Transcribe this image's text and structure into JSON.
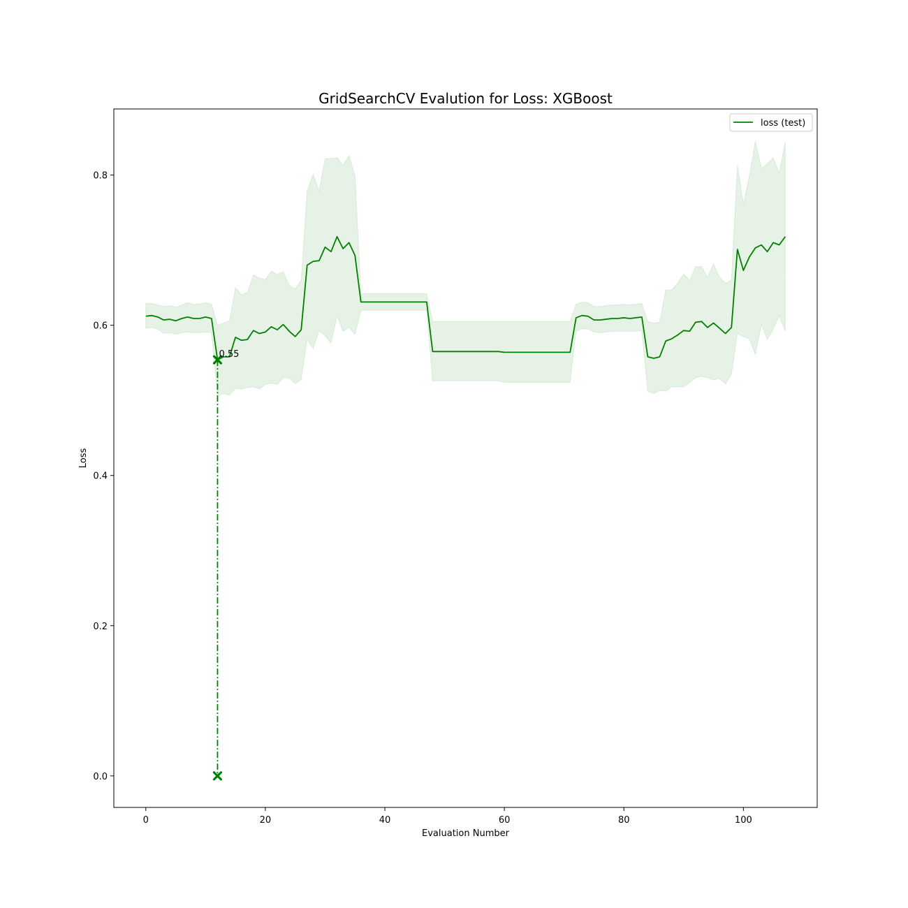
{
  "chart_data": {
    "type": "line",
    "title": "GridSearchCV Evalution for Loss: XGBoost",
    "xlabel": "Evaluation Number",
    "ylabel": "Loss",
    "xlim": [
      -5.35,
      112.35
    ],
    "ylim": [
      -0.042,
      0.888
    ],
    "xticks": [
      0,
      20,
      40,
      60,
      80,
      100
    ],
    "yticks": [
      0.0,
      0.2,
      0.4,
      0.6,
      0.8
    ],
    "ytick_labels": [
      "0.0",
      "0.2",
      "0.4",
      "0.6",
      "0.8"
    ],
    "grid": false,
    "legend": {
      "position": "top-right",
      "entries": [
        "loss (test)"
      ]
    },
    "colors": {
      "line": "#008000",
      "band": "#008000"
    },
    "series": [
      {
        "name": "loss (test)",
        "x": [
          0,
          1,
          2,
          3,
          4,
          5,
          6,
          7,
          8,
          9,
          10,
          11,
          12,
          13,
          14,
          15,
          16,
          17,
          18,
          19,
          20,
          21,
          22,
          23,
          24,
          25,
          26,
          27,
          28,
          29,
          30,
          31,
          32,
          33,
          34,
          35,
          36,
          37,
          38,
          39,
          40,
          41,
          42,
          43,
          44,
          45,
          46,
          47,
          48,
          49,
          50,
          51,
          52,
          53,
          54,
          55,
          56,
          57,
          58,
          59,
          60,
          61,
          62,
          63,
          64,
          65,
          66,
          67,
          68,
          69,
          70,
          71,
          72,
          73,
          74,
          75,
          76,
          77,
          78,
          79,
          80,
          81,
          82,
          83,
          84,
          85,
          86,
          87,
          88,
          89,
          90,
          91,
          92,
          93,
          94,
          95,
          96,
          97,
          98,
          99,
          100,
          101,
          102,
          103,
          104,
          105,
          106,
          107
        ],
        "y": [
          0.612,
          0.613,
          0.611,
          0.607,
          0.608,
          0.606,
          0.609,
          0.611,
          0.609,
          0.609,
          0.611,
          0.609,
          0.554,
          0.558,
          0.558,
          0.584,
          0.58,
          0.581,
          0.593,
          0.589,
          0.591,
          0.598,
          0.594,
          0.601,
          0.592,
          0.585,
          0.594,
          0.68,
          0.685,
          0.686,
          0.704,
          0.698,
          0.718,
          0.702,
          0.71,
          0.693,
          0.631,
          0.631,
          0.631,
          0.631,
          0.631,
          0.631,
          0.631,
          0.631,
          0.631,
          0.631,
          0.631,
          0.631,
          0.565,
          0.565,
          0.565,
          0.565,
          0.565,
          0.565,
          0.565,
          0.565,
          0.565,
          0.565,
          0.565,
          0.565,
          0.564,
          0.564,
          0.564,
          0.564,
          0.564,
          0.564,
          0.564,
          0.564,
          0.564,
          0.564,
          0.564,
          0.564,
          0.61,
          0.613,
          0.612,
          0.607,
          0.607,
          0.608,
          0.609,
          0.609,
          0.61,
          0.609,
          0.61,
          0.611,
          0.558,
          0.556,
          0.558,
          0.579,
          0.582,
          0.587,
          0.593,
          0.592,
          0.604,
          0.605,
          0.597,
          0.603,
          0.596,
          0.589,
          0.597,
          0.701,
          0.673,
          0.691,
          0.703,
          0.707,
          0.698,
          0.71,
          0.707,
          0.718
        ],
        "lower": [
          0.596,
          0.597,
          0.595,
          0.589,
          0.59,
          0.588,
          0.59,
          0.591,
          0.59,
          0.59,
          0.591,
          0.59,
          0.506,
          0.509,
          0.507,
          0.516,
          0.515,
          0.517,
          0.518,
          0.515,
          0.521,
          0.523,
          0.521,
          0.53,
          0.53,
          0.522,
          0.528,
          0.581,
          0.569,
          0.593,
          0.586,
          0.576,
          0.613,
          0.592,
          0.597,
          0.588,
          0.62,
          0.62,
          0.62,
          0.62,
          0.62,
          0.62,
          0.62,
          0.62,
          0.62,
          0.62,
          0.62,
          0.62,
          0.526,
          0.526,
          0.526,
          0.526,
          0.526,
          0.526,
          0.526,
          0.526,
          0.526,
          0.526,
          0.526,
          0.526,
          0.524,
          0.524,
          0.524,
          0.524,
          0.524,
          0.524,
          0.524,
          0.524,
          0.524,
          0.524,
          0.524,
          0.524,
          0.592,
          0.595,
          0.595,
          0.591,
          0.59,
          0.591,
          0.592,
          0.592,
          0.592,
          0.592,
          0.592,
          0.593,
          0.512,
          0.509,
          0.513,
          0.512,
          0.518,
          0.518,
          0.518,
          0.524,
          0.53,
          0.532,
          0.53,
          0.527,
          0.529,
          0.522,
          0.535,
          0.589,
          0.585,
          0.582,
          0.561,
          0.601,
          0.581,
          0.595,
          0.613,
          0.592
        ],
        "upper": [
          0.629,
          0.629,
          0.627,
          0.625,
          0.626,
          0.624,
          0.627,
          0.63,
          0.628,
          0.628,
          0.63,
          0.628,
          0.6,
          0.603,
          0.606,
          0.65,
          0.64,
          0.644,
          0.667,
          0.663,
          0.661,
          0.672,
          0.668,
          0.671,
          0.653,
          0.648,
          0.66,
          0.779,
          0.801,
          0.779,
          0.822,
          0.822,
          0.823,
          0.813,
          0.826,
          0.799,
          0.642,
          0.642,
          0.642,
          0.642,
          0.642,
          0.642,
          0.642,
          0.642,
          0.642,
          0.642,
          0.642,
          0.642,
          0.605,
          0.605,
          0.605,
          0.605,
          0.605,
          0.605,
          0.605,
          0.605,
          0.605,
          0.605,
          0.605,
          0.605,
          0.605,
          0.605,
          0.605,
          0.605,
          0.605,
          0.605,
          0.605,
          0.605,
          0.605,
          0.605,
          0.605,
          0.605,
          0.628,
          0.631,
          0.63,
          0.625,
          0.625,
          0.626,
          0.627,
          0.627,
          0.628,
          0.627,
          0.628,
          0.629,
          0.605,
          0.603,
          0.604,
          0.647,
          0.647,
          0.656,
          0.668,
          0.66,
          0.678,
          0.678,
          0.664,
          0.682,
          0.664,
          0.656,
          0.66,
          0.813,
          0.761,
          0.799,
          0.845,
          0.809,
          0.815,
          0.823,
          0.803,
          0.844
        ]
      }
    ],
    "annotations": [
      {
        "text": "0.55",
        "x": 12,
        "y": 0.554,
        "marker": "x",
        "drop_to_zero": true
      }
    ]
  }
}
